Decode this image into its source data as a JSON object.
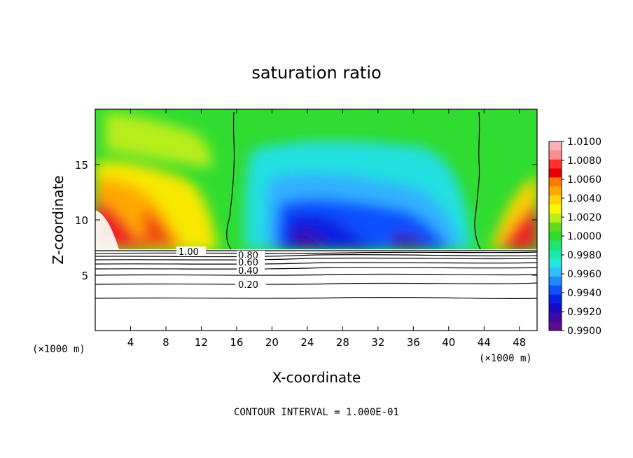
{
  "chart_data": {
    "type": "heatmap",
    "title": "saturation ratio",
    "xlabel": "X-coordinate",
    "ylabel": "Z-coordinate",
    "x_unit_left": "(×1000 m)",
    "x_unit_right": "(×1000 m)",
    "xlim": [
      0,
      50
    ],
    "ylim": [
      0,
      20
    ],
    "x_ticks": [
      4,
      8,
      12,
      16,
      20,
      24,
      28,
      32,
      36,
      40,
      44,
      48
    ],
    "y_ticks": [
      5,
      10,
      15
    ],
    "colorbar": {
      "min": 0.99,
      "max": 1.01,
      "tick_labels": [
        "1.0100",
        "1.0080",
        "1.0060",
        "1.0040",
        "1.0020",
        "1.0000",
        "0.9980",
        "0.9960",
        "0.9940",
        "0.9920",
        "0.9900"
      ],
      "colors": [
        "#ffb0b4",
        "#ff8c8c",
        "#ff3030",
        "#ea0000",
        "#ff7a00",
        "#ffa800",
        "#ffd200",
        "#f8f800",
        "#b8ee1c",
        "#60dc18",
        "#30dc30",
        "#1ee46a",
        "#18e8a8",
        "#20e8e0",
        "#30c0ff",
        "#1e8cff",
        "#1050ff",
        "#0c20e8",
        "#1808c8",
        "#3c0aa8",
        "#5e0c90"
      ]
    },
    "contours": [
      {
        "label": "1.00",
        "level": 1.0
      },
      {
        "label": "0.80",
        "level": 0.8
      },
      {
        "label": "0.60",
        "level": 0.6
      },
      {
        "label": "0.40",
        "level": 0.4
      },
      {
        "label": "0.20",
        "level": 0.2
      }
    ],
    "contour_interval_note": "CONTOUR INTERVAL = 1.000E-01",
    "field_notes": "Saturation ratio shown above z≈7.2 km: supersaturated (1.002–1.010) near x<15 and x>44, subsaturated (0.990–0.998) between x≈18 and x≈42; black contours below z≈7.2 km show lower values (0.2–1.0)."
  }
}
